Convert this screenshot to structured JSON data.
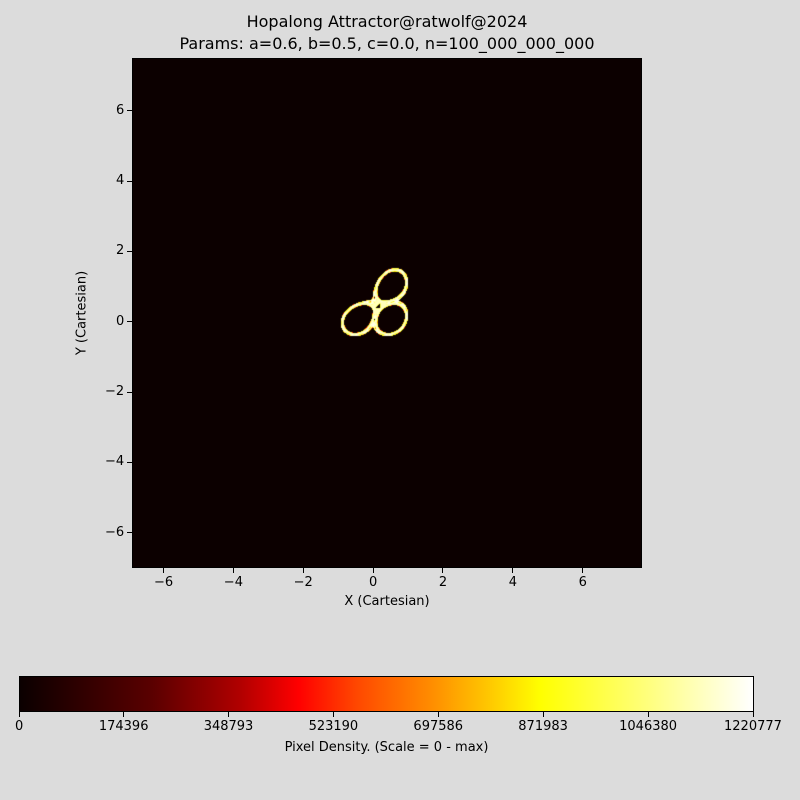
{
  "chart_data": {
    "type": "heatmap",
    "title": "Hopalong Attractor@ratwolf@2024",
    "subtitle": "Params: a=0.6, b=0.5, c=0.0, n=100_000_000_000",
    "xlabel": "X (Cartesian)",
    "ylabel": "Y (Cartesian)",
    "xlim": [
      -6.9,
      7.7
    ],
    "ylim": [
      -7.0,
      7.5
    ],
    "xticks": [
      -6,
      -4,
      -2,
      0,
      2,
      4,
      6
    ],
    "yticks": [
      -6,
      -4,
      -2,
      0,
      2,
      4,
      6
    ],
    "params": {
      "a": 0.6,
      "b": 0.5,
      "c": 0.0
    },
    "colorbar": {
      "label": "Pixel Density. (Scale = 0 - max)",
      "ticks": [
        0,
        174396,
        348793,
        523190,
        697586,
        871983,
        1046380,
        1220777
      ],
      "range": [
        0,
        1220777
      ],
      "colormap": "hot"
    },
    "grid": false
  }
}
